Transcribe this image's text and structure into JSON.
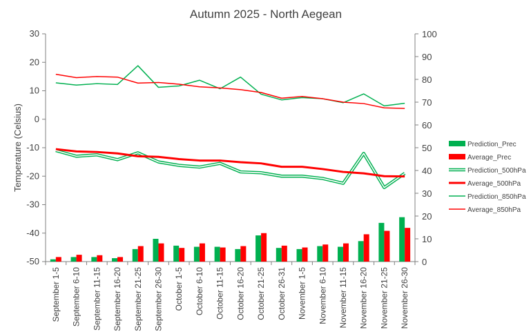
{
  "chart_data": {
    "type": "bar",
    "title": "Autumn 2025 - North Aegean",
    "ylabel": "Temperature (Celsius)",
    "ylim": [
      -50,
      30
    ],
    "y2lim": [
      0,
      100
    ],
    "yticks": [
      "30",
      "20",
      "10",
      "0",
      "-10",
      "-20",
      "-30",
      "-40",
      "-50"
    ],
    "y2ticks": [
      "100",
      "90",
      "80",
      "70",
      "60",
      "50",
      "40",
      "30",
      "20",
      "10",
      "0"
    ],
    "grid": false,
    "legend_position": "right",
    "categories": [
      "September 1-5",
      "September 6-10",
      "September 11-15",
      "September 16-20",
      "September 21-25",
      "September 26-30",
      "October 1-5",
      "October 6-10",
      "October 11-15",
      "October 16-20",
      "October 21-25",
      "October 26-31",
      "November 1-5",
      "November 6-10",
      "November 11-15",
      "November 16-20",
      "November 21-25",
      "November 26-30"
    ],
    "series": [
      {
        "name": "Prediction_Prec",
        "type": "bar",
        "axis": "right",
        "color": "#00b050",
        "values": [
          1,
          2,
          2,
          1.5,
          5.5,
          10,
          7,
          6.5,
          6.5,
          5.5,
          11.5,
          6,
          5.5,
          6.8,
          6.5,
          9,
          17,
          19.5
        ]
      },
      {
        "name": "Average_Prec",
        "type": "bar",
        "axis": "right",
        "color": "#ff0000",
        "values": [
          2,
          3,
          2.8,
          2,
          6.8,
          8,
          6,
          8,
          6.2,
          6.8,
          12.5,
          7,
          6.2,
          7.5,
          8,
          12,
          13.5,
          14.8
        ]
      },
      {
        "name": "Prediction_500hPa",
        "type": "line",
        "style": "double",
        "axis": "left",
        "color": "#00b050",
        "values": [
          -11,
          -13,
          -12.5,
          -14.2,
          -11.8,
          -15,
          -16.2,
          -16.8,
          -15.5,
          -18.5,
          -18.8,
          -20,
          -20,
          -20.8,
          -22.5,
          -12,
          -24,
          -19
        ]
      },
      {
        "name": "Average_500hPa",
        "type": "line",
        "axis": "left",
        "color": "#ff0000",
        "values": [
          -10.5,
          -11.3,
          -11.5,
          -12,
          -13,
          -13.2,
          -14,
          -14.5,
          -14.5,
          -15.1,
          -15.5,
          -16.7,
          -16.7,
          -17.5,
          -18.5,
          -19,
          -20,
          -20.1
        ]
      },
      {
        "name": "Prediction_850hPa",
        "type": "line",
        "axis": "left",
        "color": "#00b050",
        "values": [
          12.8,
          12,
          12.5,
          12.2,
          18.8,
          11.2,
          11.7,
          13.7,
          10.7,
          14.8,
          8.8,
          6.8,
          7.6,
          7.2,
          5.8,
          8.9,
          4.7,
          5.6
        ]
      },
      {
        "name": "Average_850hPa",
        "type": "line",
        "axis": "left",
        "color": "#ff0000",
        "values": [
          15.8,
          14.6,
          15,
          14.8,
          12.7,
          12.9,
          12.3,
          11.4,
          11,
          10.4,
          9.4,
          7.4,
          8,
          7.2,
          6,
          5.5,
          4,
          3.8
        ]
      }
    ]
  }
}
